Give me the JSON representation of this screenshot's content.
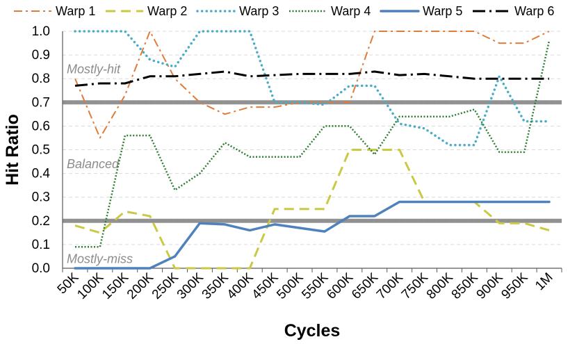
{
  "chart_data": {
    "type": "line",
    "title": "",
    "xlabel": "Cycles",
    "ylabel": "Hit Ratio",
    "ylim": [
      0,
      1.0
    ],
    "yticks": [
      "0.0",
      "0.1",
      "0.2",
      "0.3",
      "0.4",
      "0.5",
      "0.6",
      "0.7",
      "0.8",
      "0.9",
      "1.0"
    ],
    "categories": [
      "50K",
      "100K",
      "150K",
      "200K",
      "250K",
      "300K",
      "350K",
      "400K",
      "450K",
      "500K",
      "550K",
      "600K",
      "650K",
      "700K",
      "750K",
      "800K",
      "850K",
      "900K",
      "950K",
      "1M"
    ],
    "grid": true,
    "legend_position": "top",
    "thresholds": [
      {
        "value": 0.7,
        "color": "#7f7f7f"
      },
      {
        "value": 0.2,
        "color": "#7f7f7f"
      }
    ],
    "zone_labels": [
      {
        "text": "Mostly-hit",
        "value": 0.84
      },
      {
        "text": "Balanced",
        "value": 0.44
      },
      {
        "text": "Mostly-miss",
        "value": 0.04
      }
    ],
    "series": [
      {
        "name": "Warp 1",
        "color": "#e07b39",
        "style": "dashdot",
        "values": [
          0.8,
          0.55,
          0.73,
          1.0,
          0.8,
          0.7,
          0.65,
          0.68,
          0.68,
          0.7,
          0.7,
          0.7,
          1.0,
          1.0,
          1.0,
          1.0,
          1.0,
          0.95,
          0.95,
          1.0
        ]
      },
      {
        "name": "Warp 2",
        "color": "#c9c944",
        "style": "dash",
        "values": [
          0.18,
          0.15,
          0.24,
          0.22,
          0.0,
          0.0,
          0.0,
          0.0,
          0.25,
          0.25,
          0.25,
          0.5,
          0.5,
          0.5,
          0.28,
          0.28,
          0.28,
          0.19,
          0.19,
          0.16
        ]
      },
      {
        "name": "Warp 3",
        "color": "#4bacc6",
        "style": "dot",
        "values": [
          1.0,
          1.0,
          1.0,
          0.88,
          0.85,
          1.0,
          1.0,
          1.0,
          0.7,
          0.7,
          0.69,
          0.77,
          0.77,
          0.61,
          0.59,
          0.52,
          0.52,
          0.81,
          0.62,
          0.62
        ]
      },
      {
        "name": "Warp 4",
        "color": "#2e7d32",
        "style": "densedot",
        "values": [
          0.09,
          0.09,
          0.56,
          0.56,
          0.33,
          0.4,
          0.53,
          0.47,
          0.47,
          0.47,
          0.6,
          0.6,
          0.48,
          0.64,
          0.64,
          0.64,
          0.67,
          0.49,
          0.49,
          0.96
        ]
      },
      {
        "name": "Warp 5",
        "color": "#4f81bd",
        "style": "solid",
        "values": [
          0.0,
          0.0,
          0.0,
          0.0,
          0.05,
          0.19,
          0.185,
          0.16,
          0.185,
          0.17,
          0.155,
          0.22,
          0.22,
          0.28,
          0.28,
          0.28,
          0.28,
          0.28,
          0.28,
          0.28
        ]
      },
      {
        "name": "Warp 6",
        "color": "#000000",
        "style": "longdashdot",
        "values": [
          0.77,
          0.78,
          0.78,
          0.81,
          0.81,
          0.82,
          0.83,
          0.81,
          0.815,
          0.82,
          0.82,
          0.82,
          0.83,
          0.815,
          0.82,
          0.81,
          0.8,
          0.8,
          0.8,
          0.8
        ]
      }
    ]
  }
}
